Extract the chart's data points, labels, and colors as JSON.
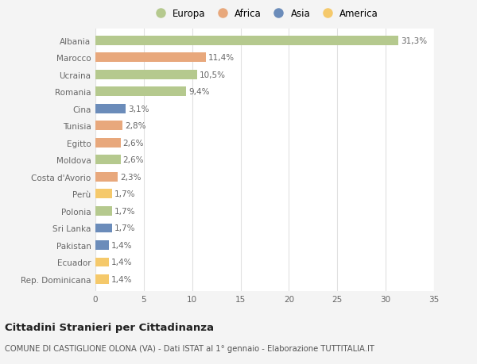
{
  "countries": [
    "Albania",
    "Marocco",
    "Ucraina",
    "Romania",
    "Cina",
    "Tunisia",
    "Egitto",
    "Moldova",
    "Costa d'Avorio",
    "Perù",
    "Polonia",
    "Sri Lanka",
    "Pakistan",
    "Ecuador",
    "Rep. Dominicana"
  ],
  "values": [
    31.3,
    11.4,
    10.5,
    9.4,
    3.1,
    2.8,
    2.6,
    2.6,
    2.3,
    1.7,
    1.7,
    1.7,
    1.4,
    1.4,
    1.4
  ],
  "labels": [
    "31,3%",
    "11,4%",
    "10,5%",
    "9,4%",
    "3,1%",
    "2,8%",
    "2,6%",
    "2,6%",
    "2,3%",
    "1,7%",
    "1,7%",
    "1,7%",
    "1,4%",
    "1,4%",
    "1,4%"
  ],
  "continents": [
    "Europa",
    "Africa",
    "Europa",
    "Europa",
    "Asia",
    "Africa",
    "Africa",
    "Europa",
    "Africa",
    "America",
    "Europa",
    "Asia",
    "Asia",
    "America",
    "America"
  ],
  "continent_colors": {
    "Europa": "#b5c98e",
    "Africa": "#e8a87c",
    "Asia": "#6b8cba",
    "America": "#f5c96b"
  },
  "legend_order": [
    "Europa",
    "Africa",
    "Asia",
    "America"
  ],
  "bg_color": "#f4f4f4",
  "plot_bg_color": "#ffffff",
  "grid_color": "#e0e0e0",
  "title": "Cittadini Stranieri per Cittadinanza",
  "subtitle": "COMUNE DI CASTIGLIONE OLONA (VA) - Dati ISTAT al 1° gennaio - Elaborazione TUTTITALIA.IT",
  "xlim": [
    0,
    35
  ],
  "xticks": [
    0,
    5,
    10,
    15,
    20,
    25,
    30,
    35
  ],
  "bar_height": 0.55,
  "label_fontsize": 7.5,
  "tick_fontsize": 7.5,
  "title_fontsize": 9.5,
  "subtitle_fontsize": 7.2
}
